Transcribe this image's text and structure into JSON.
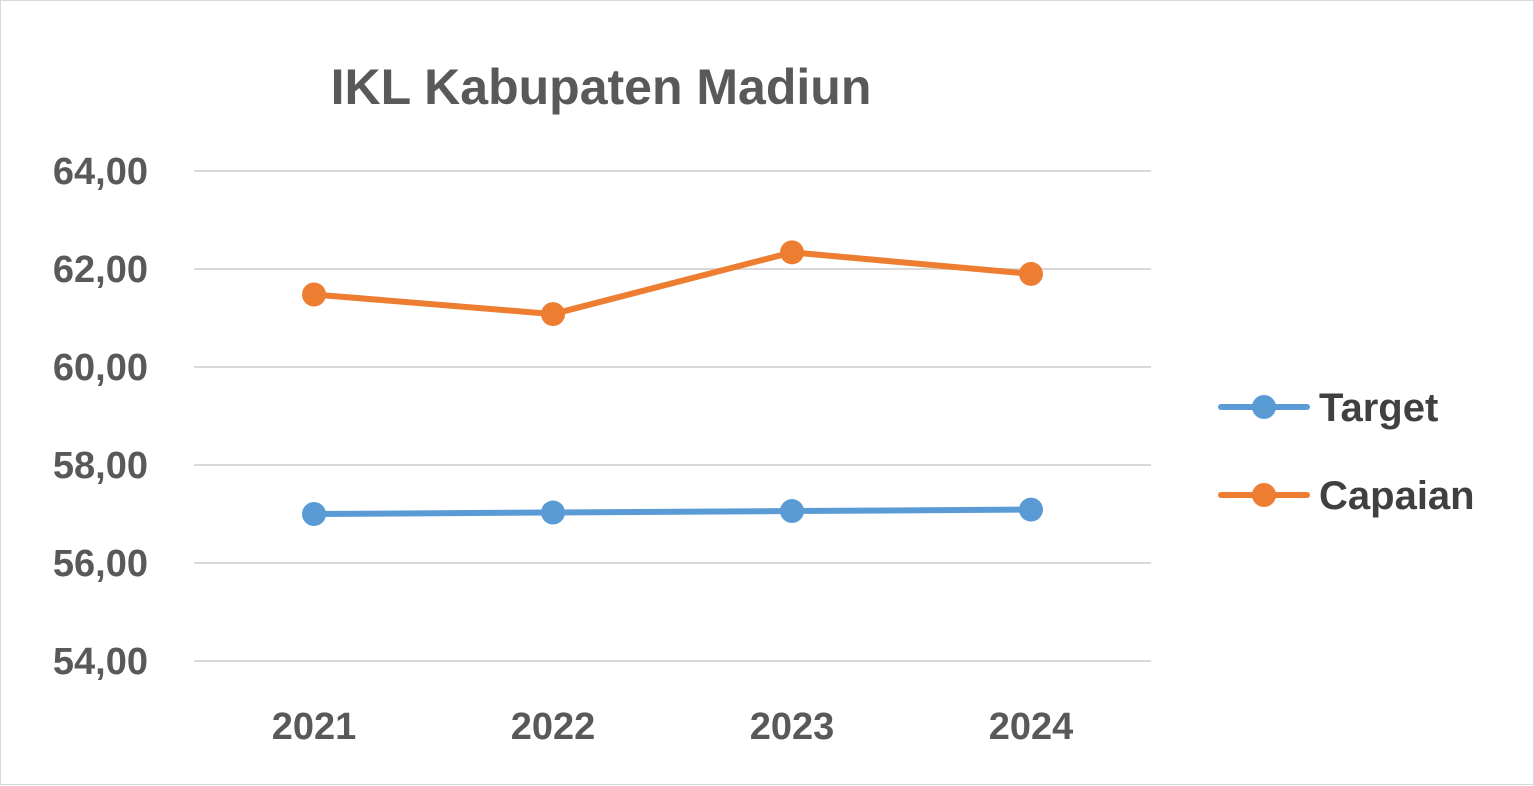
{
  "chart_data": {
    "type": "line",
    "title": "IKL Kabupaten Madiun",
    "categories": [
      "2021",
      "2022",
      "2023",
      "2024"
    ],
    "series": [
      {
        "name": "Target",
        "color": "#5b9bd5",
        "values": [
          57.0,
          57.03,
          57.06,
          57.09
        ]
      },
      {
        "name": "Capaian",
        "color": "#ed7d31",
        "values": [
          61.48,
          61.08,
          62.34,
          61.9
        ]
      }
    ],
    "ylim": [
      54,
      64
    ],
    "yticks": [
      54,
      56,
      58,
      60,
      62,
      64
    ],
    "ytick_labels": [
      "54,00",
      "56,00",
      "58,00",
      "60,00",
      "62,00",
      "64,00"
    ],
    "grid": true,
    "legend_position": "right"
  }
}
